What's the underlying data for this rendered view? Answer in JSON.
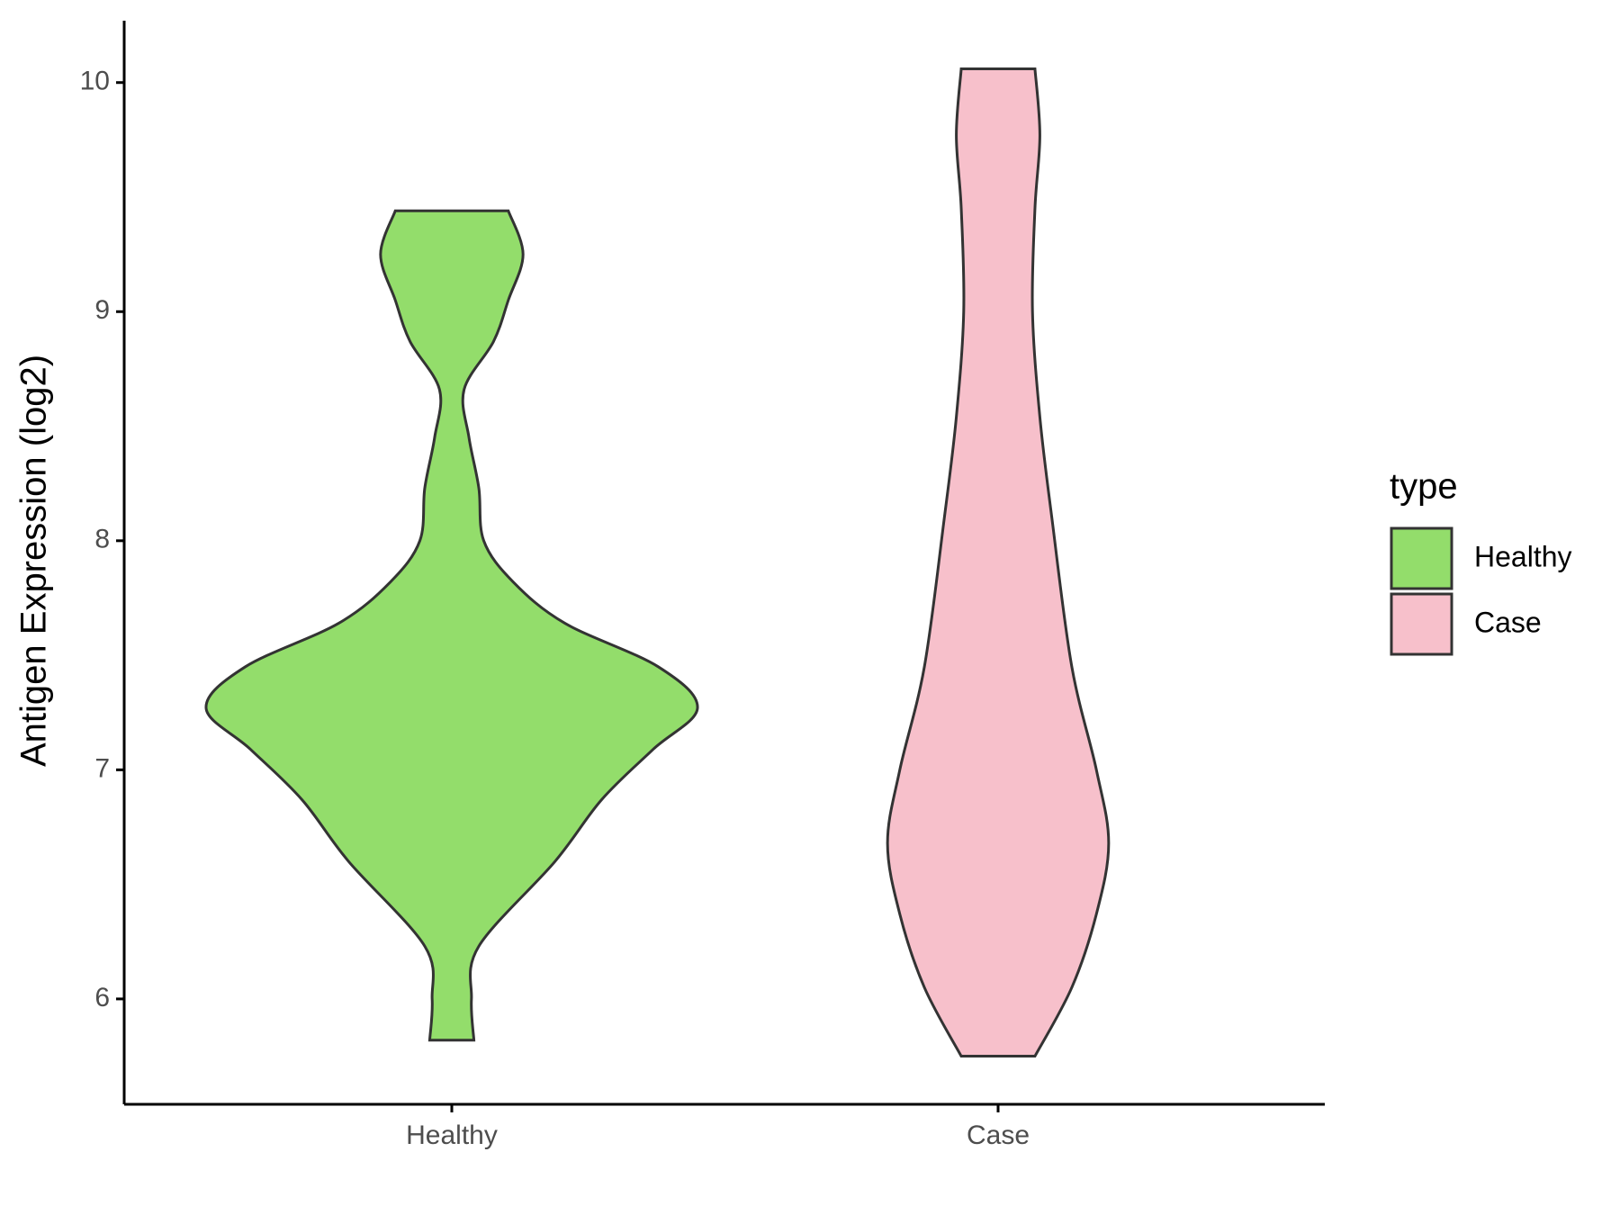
{
  "chart_data": {
    "type": "violin",
    "y_label": "Antigen Expression (log2)",
    "categories": [
      "Healthy",
      "Case"
    ],
    "legend_title": "type",
    "legend_position": "right",
    "ylim": [
      5.54,
      10.27
    ],
    "yticks": [
      6,
      7,
      8,
      9,
      10
    ],
    "series": [
      {
        "name": "Healthy",
        "color": "#93DD6B",
        "y": [
          5.82,
          6.0,
          6.23,
          6.6,
          6.87,
          7.09,
          7.27,
          7.45,
          7.64,
          7.82,
          8.0,
          8.23,
          8.45,
          8.66,
          8.87,
          9.05,
          9.25,
          9.44
        ],
        "density": [
          0.09,
          0.08,
          0.11,
          0.42,
          0.61,
          0.82,
          1,
          0.84,
          0.46,
          0.25,
          0.13,
          0.11,
          0.07,
          0.05,
          0.17,
          0.23,
          0.29,
          0.23
        ]
      },
      {
        "name": "Case",
        "color": "#F7C0CB",
        "y": [
          5.75,
          6.05,
          6.37,
          6.68,
          7.0,
          7.45,
          8.09,
          8.54,
          9.0,
          9.45,
          9.77,
          10.06
        ],
        "density": [
          0.15,
          0.3,
          0.4,
          0.45,
          0.4,
          0.3,
          0.22,
          0.17,
          0.14,
          0.15,
          0.17,
          0.15
        ]
      }
    ]
  }
}
